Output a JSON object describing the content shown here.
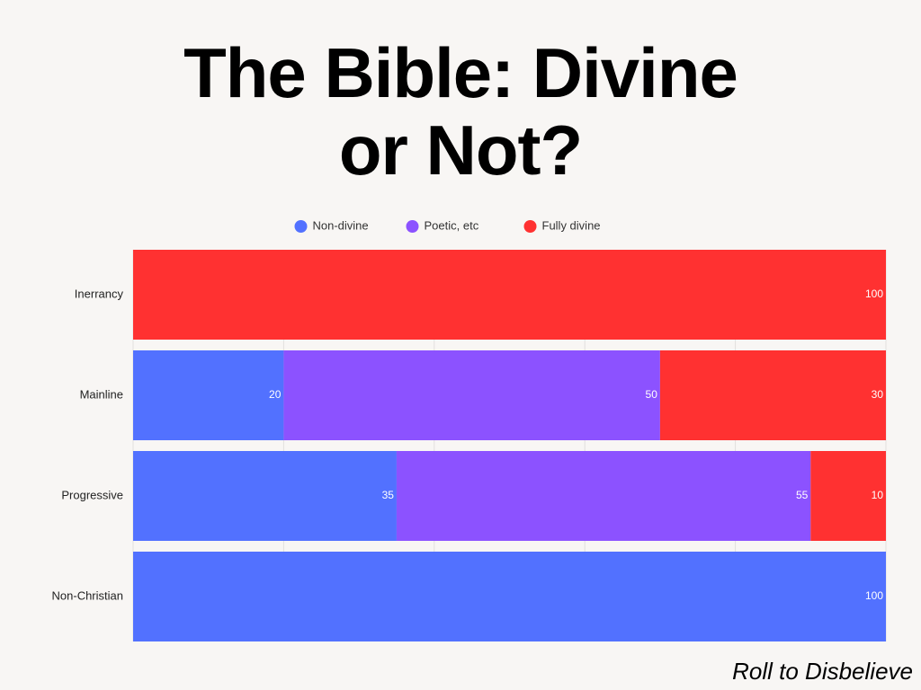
{
  "chart_data": {
    "type": "stacked_barh",
    "title": "The Bible: Divine or Not?",
    "categories": [
      "Inerrancy",
      "Mainline",
      "Progressive",
      "Non-Christian"
    ],
    "series": [
      {
        "name": "Non-divine",
        "color": "#5271ff",
        "values": [
          0,
          20,
          35,
          100
        ]
      },
      {
        "name": "Poetic, etc",
        "color": "#8c52ff",
        "values": [
          0,
          50,
          55,
          0
        ]
      },
      {
        "name": "Fully divine",
        "color": "#ff3131",
        "values": [
          100,
          30,
          10,
          0
        ]
      }
    ],
    "xlim": [
      0,
      100
    ],
    "xticks": [
      0,
      20,
      40,
      60,
      80,
      100
    ],
    "grid": true,
    "legend": "top",
    "footer": "Roll to Disbelieve"
  }
}
